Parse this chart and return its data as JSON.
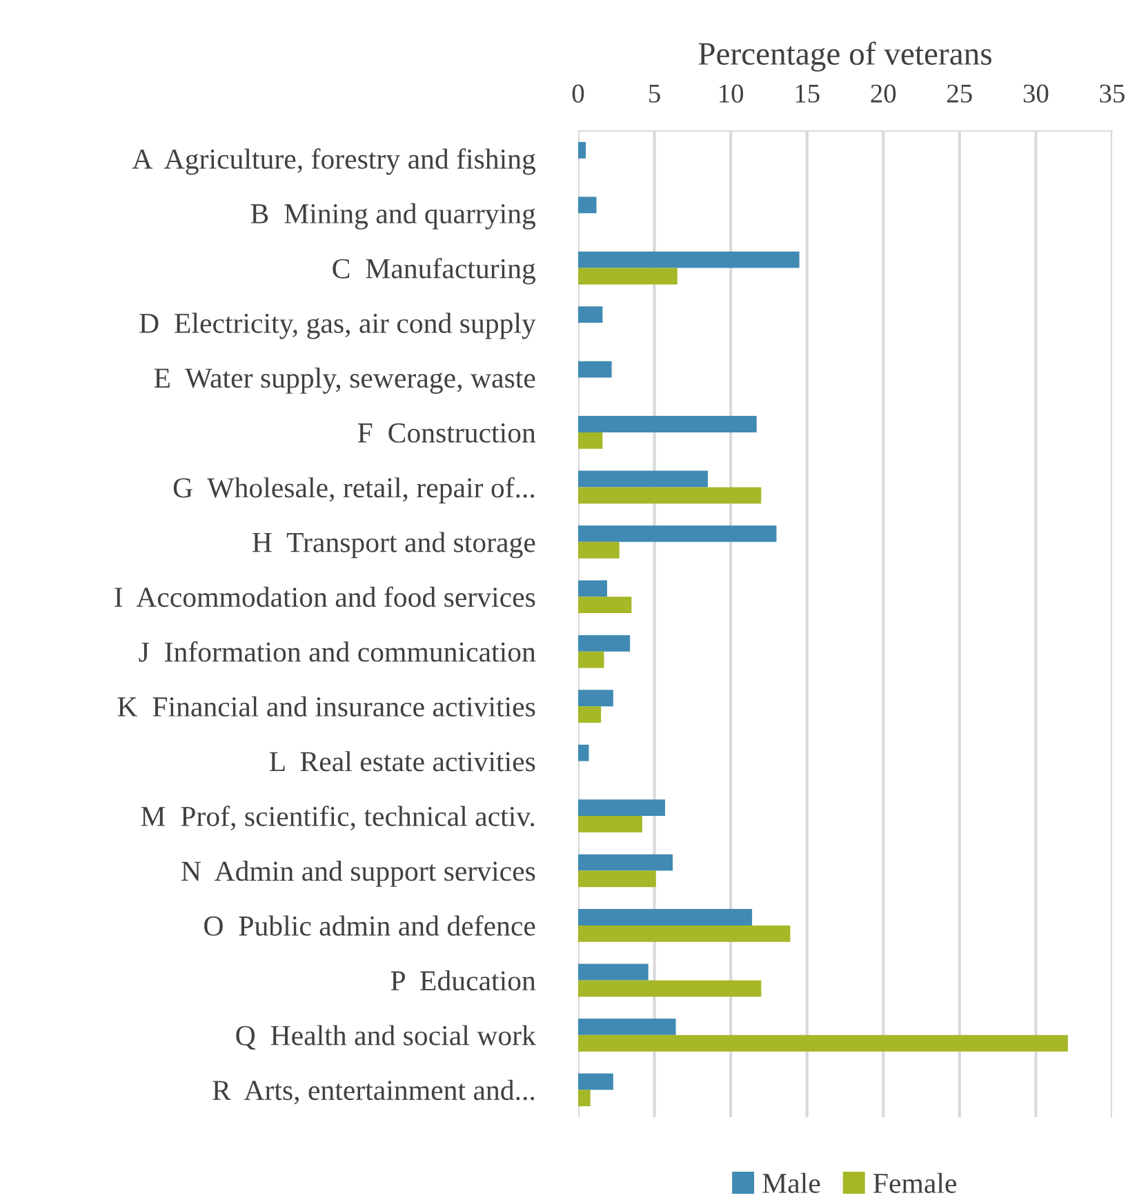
{
  "chart_data": {
    "type": "bar",
    "orientation": "horizontal",
    "xlabel": "Percentage of veterans",
    "categories": [
      "A  Agriculture, forestry and fishing",
      "B  Mining and quarrying",
      "C  Manufacturing",
      "D  Electricity, gas, air cond supply",
      "E  Water supply, sewerage, waste",
      "F  Construction",
      "G  Wholesale, retail, repair of...",
      "H  Transport and storage",
      "I  Accommodation and food services",
      "J  Information and communication",
      "K  Financial and insurance activities",
      "L  Real estate activities",
      "M  Prof, scientific, technical activ.",
      "N  Admin and support services",
      "O  Public admin and defence",
      "P  Education",
      "Q  Health and social work",
      "R  Arts, entertainment and..."
    ],
    "series": [
      {
        "name": "Male",
        "color": "#418ab3",
        "values": [
          0.5,
          1.2,
          14.5,
          1.6,
          2.2,
          11.7,
          8.5,
          13.0,
          1.9,
          3.4,
          2.3,
          0.7,
          5.7,
          6.2,
          11.4,
          4.6,
          6.4,
          2.3
        ]
      },
      {
        "name": "Female",
        "color": "#a6b727",
        "values": [
          null,
          null,
          6.5,
          null,
          null,
          1.6,
          12.0,
          2.7,
          3.5,
          1.7,
          1.5,
          null,
          4.2,
          5.1,
          13.9,
          12.0,
          32.1,
          0.8
        ]
      }
    ],
    "xlim": [
      0,
      35
    ],
    "xticks": [
      0,
      5,
      10,
      15,
      20,
      25,
      30,
      35
    ],
    "grid": "x",
    "legend": "bottom"
  }
}
